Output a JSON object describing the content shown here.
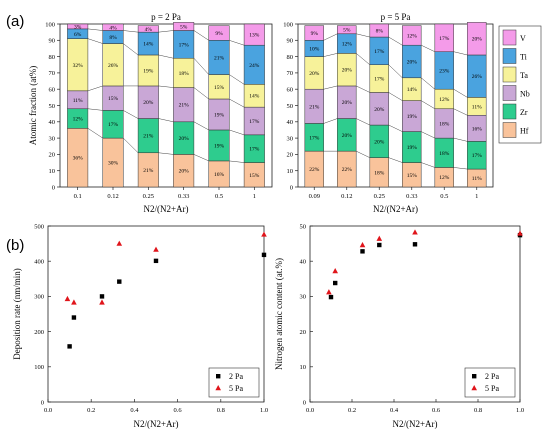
{
  "figure": {
    "label_a": "(a)",
    "label_b": "(b)"
  },
  "colors": {
    "Hf": "#f9c39b",
    "Zr": "#2ecc8e",
    "Nb": "#c9a7d6",
    "Ta": "#f7f29a",
    "Ti": "#4aa3df",
    "V": "#f49be9",
    "s2Pa": "#000000",
    "s5Pa": "#e0151b"
  },
  "chart_data": [
    {
      "type": "bar",
      "stacked": true,
      "title": "p = 2 Pa",
      "xlabel": "N2/(N2+Ar)",
      "ylabel": "Atomic fraction (at%)",
      "ylim": [
        0,
        100
      ],
      "yticks": [
        "0",
        "10",
        "20",
        "30",
        "40",
        "50",
        "60",
        "70",
        "80",
        "90",
        "100"
      ],
      "categories": [
        "0.1",
        "0.12",
        "0.25",
        "0.33",
        "0.5",
        "1"
      ],
      "series": [
        {
          "name": "Hf",
          "values": [
            36,
            30,
            21,
            20,
            16,
            15
          ]
        },
        {
          "name": "Zr",
          "values": [
            12,
            17,
            21,
            20,
            19,
            17
          ]
        },
        {
          "name": "Nb",
          "values": [
            11,
            15,
            20,
            21,
            19,
            17
          ]
        },
        {
          "name": "Ta",
          "values": [
            32,
            26,
            19,
            18,
            15,
            14
          ]
        },
        {
          "name": "Ti",
          "values": [
            6,
            8,
            14,
            17,
            21,
            24
          ]
        },
        {
          "name": "V",
          "values": [
            3,
            4,
            4,
            5,
            9,
            13
          ]
        }
      ],
      "labels": [
        [
          "36%",
          "30%",
          "21%",
          "20%",
          "16%",
          "15%"
        ],
        [
          "12%",
          "17%",
          "21%",
          "20%",
          "19%",
          "17%"
        ],
        [
          "11%",
          "15%",
          "20%",
          "21%",
          "19%",
          "17%"
        ],
        [
          "32%",
          "26%",
          "19%",
          "18%",
          "15%",
          "14%"
        ],
        [
          "6%",
          "8%",
          "14%",
          "17%",
          "21%",
          "24%"
        ],
        [
          "3%",
          "4%",
          "4%",
          "5%",
          "9%",
          "13%"
        ]
      ]
    },
    {
      "type": "bar",
      "stacked": true,
      "title": "p = 5 Pa",
      "xlabel": "N2/(N2+Ar)",
      "ylim": [
        0,
        100
      ],
      "yticks": [
        "0",
        "10",
        "20",
        "30",
        "40",
        "50",
        "60",
        "70",
        "80",
        "90",
        "100"
      ],
      "categories": [
        "0.09",
        "0.12",
        "0.25",
        "0.33",
        "0.5",
        "1"
      ],
      "series": [
        {
          "name": "Hf",
          "values": [
            22,
            22,
            18,
            15,
            12,
            11
          ]
        },
        {
          "name": "Zr",
          "values": [
            17,
            20,
            20,
            19,
            18,
            17
          ]
        },
        {
          "name": "Nb",
          "values": [
            21,
            20,
            20,
            19,
            18,
            16
          ]
        },
        {
          "name": "Ta",
          "values": [
            20,
            20,
            17,
            14,
            12,
            11
          ]
        },
        {
          "name": "Ti",
          "values": [
            10,
            12,
            17,
            20,
            23,
            26
          ]
        },
        {
          "name": "V",
          "values": [
            9,
            5,
            8,
            12,
            17,
            20
          ]
        }
      ],
      "labels": [
        [
          "22%",
          "22%",
          "18%",
          "15%",
          "12%",
          "11%"
        ],
        [
          "17%",
          "20%",
          "20%",
          "19%",
          "18%",
          "17%"
        ],
        [
          "21%",
          "20%",
          "20%",
          "19%",
          "18%",
          "16%"
        ],
        [
          "20%",
          "20%",
          "17%",
          "14%",
          "12%",
          "11%"
        ],
        [
          "10%",
          "12%",
          "17%",
          "20%",
          "23%",
          "26%"
        ],
        [
          "9%",
          "5%",
          "8%",
          "12%",
          "17%",
          "20%"
        ]
      ],
      "legend": [
        "V",
        "Ti",
        "Ta",
        "Nb",
        "Zr",
        "Hf"
      ],
      "legend_position": "right"
    },
    {
      "type": "scatter",
      "xlabel": "N2/(N2+Ar)",
      "ylabel": "Deposition rate (nm/min)",
      "xlim": [
        0,
        1
      ],
      "ylim": [
        0,
        500
      ],
      "xticks": [
        "0.0",
        "0.2",
        "0.4",
        "0.6",
        "0.8",
        "1.0"
      ],
      "yticks": [
        "0",
        "100",
        "200",
        "300",
        "400",
        "500"
      ],
      "series": [
        {
          "name": "2 Pa",
          "marker": "square",
          "x": [
            0.1,
            0.12,
            0.25,
            0.33,
            0.5,
            1.0
          ],
          "y": [
            158,
            240,
            300,
            342,
            401,
            418
          ]
        },
        {
          "name": "5 Pa",
          "marker": "triangle",
          "x": [
            0.09,
            0.12,
            0.25,
            0.33,
            0.5,
            1.0
          ],
          "y": [
            293,
            283,
            283,
            450,
            433,
            476
          ]
        }
      ],
      "legend_position": "bottom-right"
    },
    {
      "type": "scatter",
      "xlabel": "N2/(N2+Ar)",
      "ylabel": "Nitrogen atomic content (at.%)",
      "xlim": [
        0,
        1
      ],
      "ylim": [
        0,
        50
      ],
      "xticks": [
        "0.0",
        "0.2",
        "0.4",
        "0.6",
        "0.8",
        "1.0"
      ],
      "yticks": [
        "0",
        "10",
        "20",
        "30",
        "40",
        "50"
      ],
      "series": [
        {
          "name": "2 Pa",
          "marker": "square",
          "x": [
            0.1,
            0.12,
            0.25,
            0.33,
            0.5,
            1.0
          ],
          "y": [
            29.8,
            33.8,
            42.8,
            44.6,
            44.8,
            47.4
          ]
        },
        {
          "name": "5 Pa",
          "marker": "triangle",
          "x": [
            0.09,
            0.12,
            0.25,
            0.33,
            0.5,
            1.0
          ],
          "y": [
            31.2,
            37.2,
            44.6,
            46.4,
            48.2,
            47.9
          ]
        }
      ],
      "legend_position": "bottom-right"
    }
  ]
}
